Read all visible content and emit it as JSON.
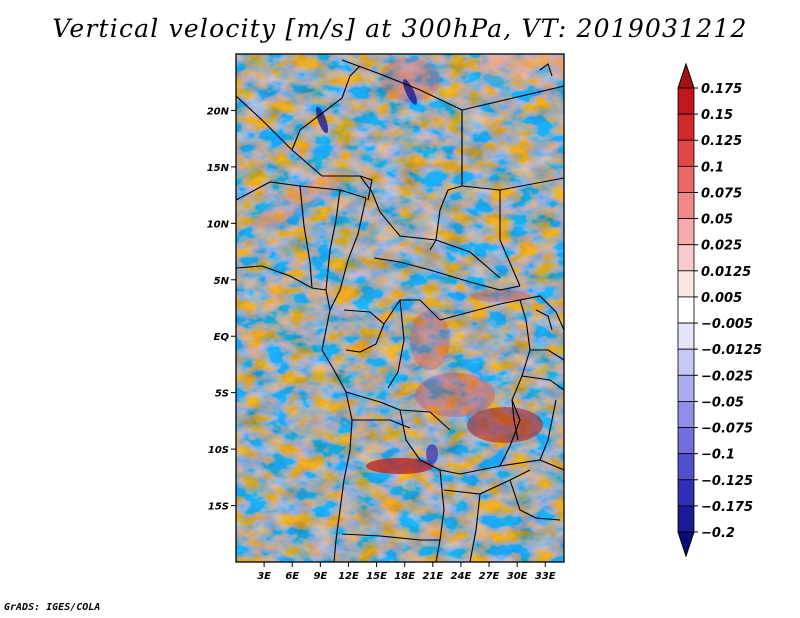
{
  "title": "Vertical velocity [m/s] at 300hPa, VT: 2019031212",
  "credit": "GrADS: IGES/COLA",
  "map": {
    "lon_range": [
      0,
      35
    ],
    "lat_range": [
      -20,
      25
    ],
    "lat_labels": [
      "20N",
      "15N",
      "10N",
      "5N",
      "EQ",
      "5S",
      "10S",
      "15S"
    ],
    "lat_values": [
      20,
      15,
      10,
      5,
      0,
      -5,
      -10,
      -15
    ],
    "lon_labels": [
      "3E",
      "6E",
      "9E",
      "12E",
      "15E",
      "18E",
      "21E",
      "24E",
      "27E",
      "30E",
      "33E"
    ],
    "lon_values": [
      3,
      6,
      9,
      12,
      15,
      18,
      21,
      24,
      27,
      30,
      33
    ]
  },
  "legend": {
    "labels": [
      "0.175",
      "0.15",
      "0.125",
      "0.1",
      "0.075",
      "0.05",
      "0.025",
      "0.0125",
      "0.005",
      "−0.005",
      "−0.0125",
      "−0.025",
      "−0.05",
      "−0.075",
      "−0.1",
      "−0.125",
      "−0.175",
      "−0.2"
    ],
    "colors": [
      "#a50f15",
      "#c0161c",
      "#d22a2a",
      "#e04848",
      "#ea6868",
      "#f08a8a",
      "#f6aaaa",
      "#fbcaca",
      "#fde6e6",
      "#ffffff",
      "#e4e4fb",
      "#c8c8f6",
      "#ababf0",
      "#8f8fe8",
      "#7070dc",
      "#5050cc",
      "#3030b4",
      "#1a1a96",
      "#0c0c78"
    ]
  }
}
